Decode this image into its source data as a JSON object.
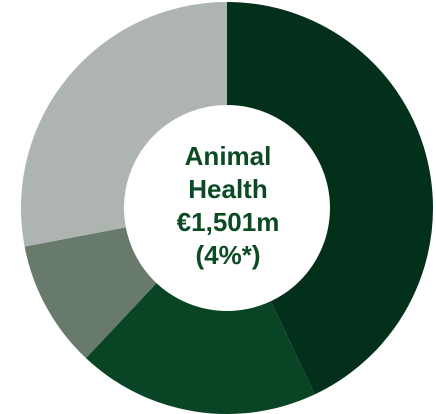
{
  "chart_data": {
    "type": "pie",
    "style": "donut",
    "slices": [
      {
        "value": 43,
        "color": "#03301a"
      },
      {
        "value": 19,
        "color": "#094424"
      },
      {
        "value": 10,
        "color": "#687a6c"
      },
      {
        "value": 28,
        "color": "#aeb5b0"
      }
    ],
    "start_angle_deg": 0,
    "direction": "clockwise",
    "center_text": {
      "line1": "Animal",
      "line2": "Health",
      "line3": "€1,501m",
      "line4": "(4%*)"
    },
    "center_text_color": "#0b4a23",
    "hole_color": "#ffffff"
  }
}
